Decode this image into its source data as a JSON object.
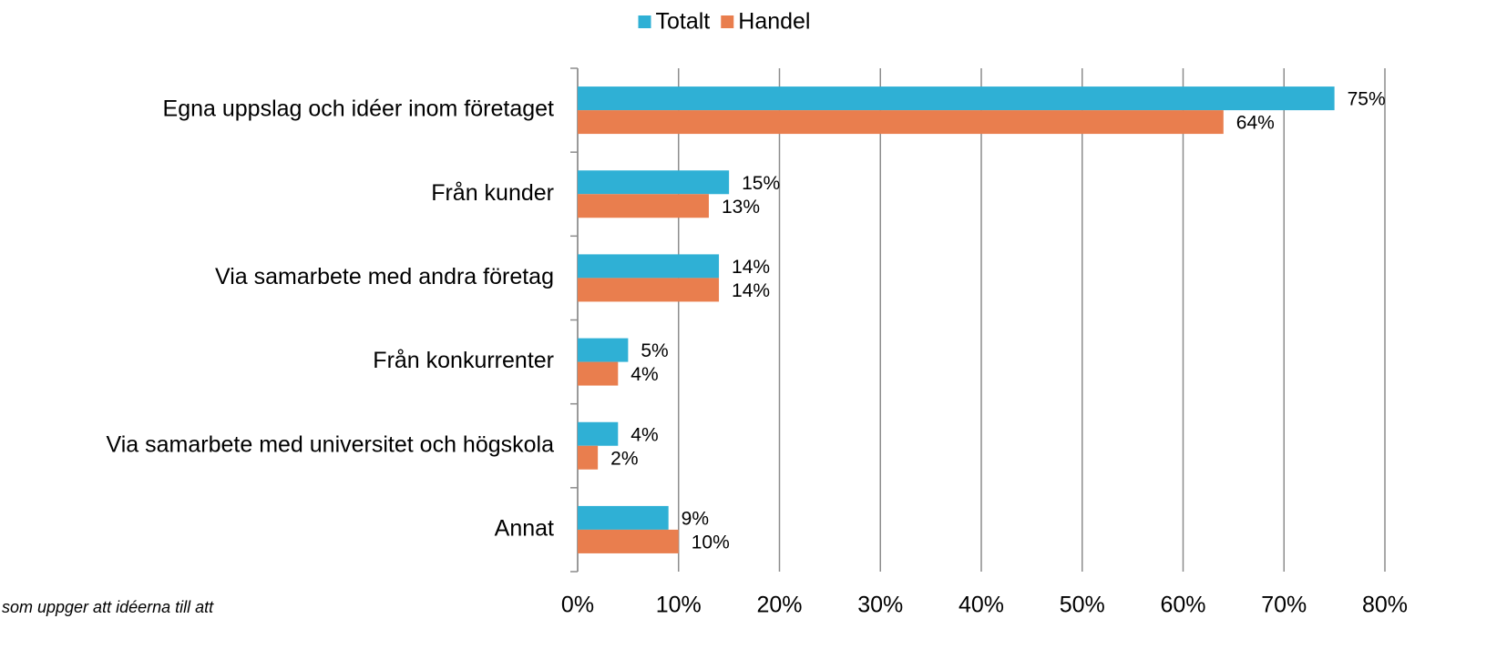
{
  "chart_data": {
    "type": "hbar",
    "categories": [
      "Egna uppslag och idéer inom företaget",
      "Från kunder",
      "Via samarbete med andra företag",
      "Från konkurrenter",
      "Via samarbete med universitet och högskola",
      "Annat"
    ],
    "series": [
      {
        "name": "Totalt",
        "color": "#2fb0d5",
        "values": [
          75,
          15,
          14,
          5,
          4,
          9
        ],
        "value_labels": [
          "75%",
          "15%",
          "14%",
          "5%",
          "4%",
          "9%"
        ]
      },
      {
        "name": "Handel",
        "color": "#e97e4e",
        "values": [
          64,
          13,
          14,
          4,
          2,
          10
        ],
        "value_labels": [
          "64%",
          "13%",
          "14%",
          "4%",
          "2%",
          "10%"
        ]
      }
    ],
    "xlim": [
      0,
      80
    ],
    "xticks": [
      {
        "value": 0,
        "label": "0%"
      },
      {
        "value": 10,
        "label": "10%"
      },
      {
        "value": 20,
        "label": "20%"
      },
      {
        "value": 30,
        "label": "30%"
      },
      {
        "value": 40,
        "label": "40%"
      },
      {
        "value": 50,
        "label": "50%"
      },
      {
        "value": 60,
        "label": "60%"
      },
      {
        "value": 70,
        "label": "70%"
      },
      {
        "value": 80,
        "label": "80%"
      }
    ],
    "grid": true,
    "legend": "top",
    "note": "som uppger att idéerna till att"
  }
}
